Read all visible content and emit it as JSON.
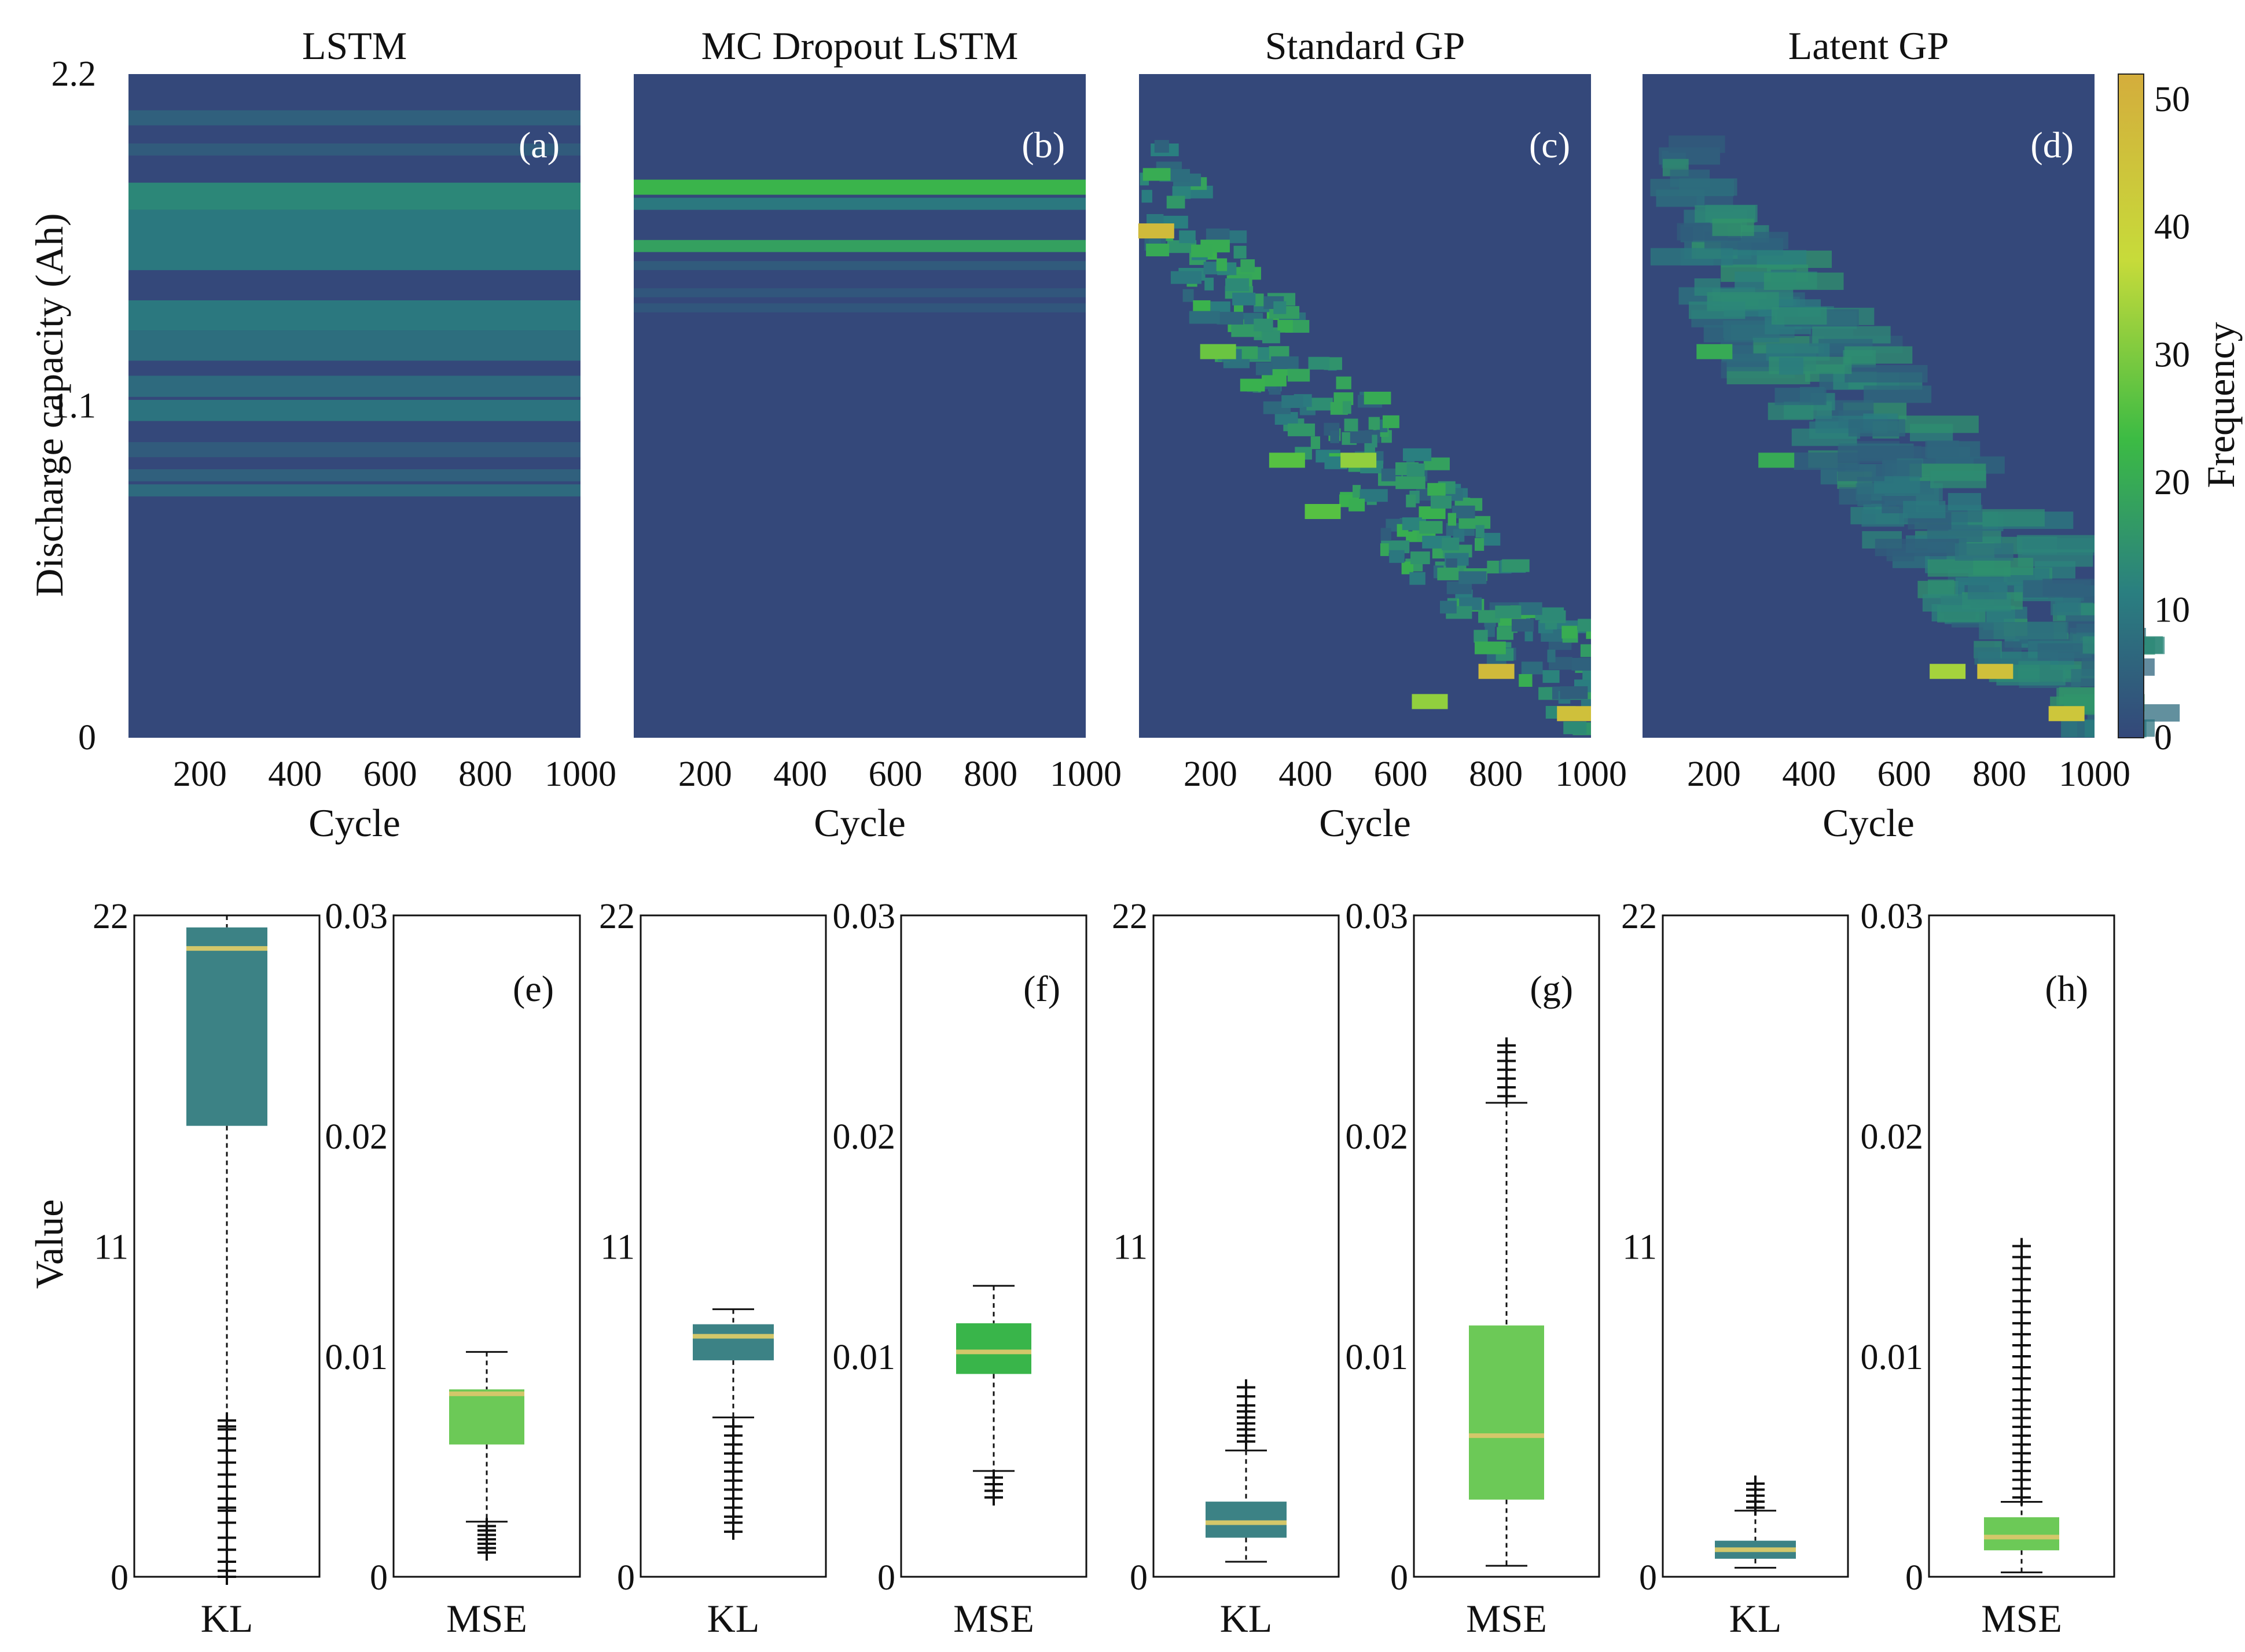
{
  "colors": {
    "background": "#34487a",
    "teal": "#2f7b80",
    "box_teal": "#3c8285",
    "green": "#39b54a",
    "box_green": "#6cc957",
    "yellow": "#d3c76a",
    "gold": "#e3b43d",
    "colorbar_stops": [
      "#34487a",
      "#2a7f80",
      "#3cbb44",
      "#c7db3a",
      "#d4ad3c"
    ]
  },
  "chart_data": [
    {
      "type": "heatmap",
      "panel": "(a)",
      "title": "LSTM",
      "xlabel": "Cycle",
      "ylabel": "Discharge capacity (Ah)",
      "xlim": [
        50,
        1000
      ],
      "ylim": [
        0,
        2.2
      ],
      "xticks": [
        "200",
        "400",
        "600",
        "800",
        "1000"
      ],
      "yticks": [
        "0",
        "1.1",
        "2.2"
      ],
      "bands": [
        {
          "y0": 2.03,
          "y1": 2.08,
          "freq": 5
        },
        {
          "y0": 1.93,
          "y1": 1.97,
          "freq": 4
        },
        {
          "y0": 1.75,
          "y1": 1.84,
          "freq": 13
        },
        {
          "y0": 1.55,
          "y1": 1.75,
          "freq": 10
        },
        {
          "y0": 1.35,
          "y1": 1.45,
          "freq": 10
        },
        {
          "y0": 1.25,
          "y1": 1.35,
          "freq": 8
        },
        {
          "y0": 1.13,
          "y1": 1.2,
          "freq": 7
        },
        {
          "y0": 1.05,
          "y1": 1.12,
          "freq": 9
        },
        {
          "y0": 0.93,
          "y1": 0.98,
          "freq": 4
        },
        {
          "y0": 0.85,
          "y1": 0.89,
          "freq": 5
        },
        {
          "y0": 0.8,
          "y1": 0.84,
          "freq": 7
        }
      ],
      "colorbar": {
        "label": "Frequency",
        "ticks": [
          "0",
          "10",
          "20",
          "30",
          "40",
          "50"
        ],
        "range": [
          0,
          52
        ]
      }
    },
    {
      "type": "heatmap",
      "panel": "(b)",
      "title": "MC Dropout LSTM",
      "xlabel": "Cycle",
      "xlim": [
        50,
        1000
      ],
      "ylim": [
        0,
        2.2
      ],
      "xticks": [
        "200",
        "400",
        "600",
        "800",
        "1000"
      ],
      "bands": [
        {
          "y0": 1.8,
          "y1": 1.85,
          "freq": 22
        },
        {
          "y0": 1.75,
          "y1": 1.79,
          "freq": 10
        },
        {
          "y0": 1.61,
          "y1": 1.65,
          "freq": 18
        },
        {
          "y0": 1.55,
          "y1": 1.58,
          "freq": 4
        },
        {
          "y0": 1.46,
          "y1": 1.49,
          "freq": 3
        },
        {
          "y0": 1.41,
          "y1": 1.44,
          "freq": 3
        }
      ]
    },
    {
      "type": "heatmap",
      "panel": "(c)",
      "title": "Standard GP",
      "xlabel": "Cycle",
      "xlim": [
        50,
        1000
      ],
      "ylim": [
        0,
        2.2
      ],
      "xticks": [
        "200",
        "400",
        "600",
        "800",
        "1000"
      ],
      "trend": "scattered cells following a decreasing capacity diagonal from about 1.85 Ah at cycle 50 to about 0.1 Ah at cycle 1000",
      "hotspots": [
        {
          "cycle": 85,
          "capacity": 1.68,
          "freq": 48
        },
        {
          "cycle": 215,
          "capacity": 1.28,
          "freq": 28
        },
        {
          "cycle": 360,
          "capacity": 0.92,
          "freq": 26
        },
        {
          "cycle": 435,
          "capacity": 0.75,
          "freq": 26
        },
        {
          "cycle": 510,
          "capacity": 0.92,
          "freq": 32
        },
        {
          "cycle": 660,
          "capacity": 0.12,
          "freq": 32
        },
        {
          "cycle": 800,
          "capacity": 0.22,
          "freq": 48
        },
        {
          "cycle": 965,
          "capacity": 0.08,
          "freq": 46
        }
      ]
    },
    {
      "type": "heatmap",
      "panel": "(d)",
      "title": "Latent GP",
      "xlabel": "Cycle",
      "xlim": [
        50,
        1000
      ],
      "ylim": [
        0,
        2.2
      ],
      "xticks": [
        "200",
        "400",
        "600",
        "800",
        "1000"
      ],
      "trend": "smoother, wider bands following a decreasing capacity diagonal from about 1.85 Ah at cycle 50 to about 0.1 Ah at cycle 1000",
      "hotspots": [
        {
          "cycle": 200,
          "capacity": 1.28,
          "freq": 20
        },
        {
          "cycle": 330,
          "capacity": 0.92,
          "freq": 20
        },
        {
          "cycle": 690,
          "capacity": 0.22,
          "freq": 34
        },
        {
          "cycle": 790,
          "capacity": 0.22,
          "freq": 46
        },
        {
          "cycle": 940,
          "capacity": 0.08,
          "freq": 44
        }
      ]
    },
    {
      "type": "box",
      "panel": "(e)",
      "ylabel": "Value",
      "plots": [
        {
          "label": "KL",
          "ylim": [
            0,
            22
          ],
          "yticks": [
            "0",
            "11",
            "22"
          ],
          "whisker_low": 0.0,
          "q1": 15.0,
          "median": 20.9,
          "q3": 21.6,
          "whisker_high": 22.0,
          "color": "box_teal",
          "outliers": [
            0.0,
            0.2,
            0.5,
            0.9,
            1.3,
            1.8,
            2.2,
            2.3,
            2.6,
            3.0,
            3.4,
            3.8,
            4.2,
            4.6,
            4.9,
            5.0,
            5.2
          ]
        },
        {
          "label": "MSE",
          "ylim": [
            0,
            0.03
          ],
          "yticks": [
            "0",
            "0.01",
            "0.02",
            "0.03"
          ],
          "whisker_low": 0.0025,
          "q1": 0.006,
          "median": 0.0083,
          "q3": 0.0085,
          "whisker_high": 0.0102,
          "color": "box_green",
          "outliers": [
            0.0011,
            0.0013,
            0.0015,
            0.0017,
            0.0019,
            0.0021,
            0.0023
          ]
        }
      ]
    },
    {
      "type": "box",
      "panel": "(f)",
      "plots": [
        {
          "label": "KL",
          "ylim": [
            0,
            22
          ],
          "yticks": [
            "0",
            "11",
            "22"
          ],
          "whisker_low": 5.3,
          "q1": 7.2,
          "median": 8.0,
          "q3": 8.4,
          "whisker_high": 8.9,
          "color": "box_teal",
          "outliers": [
            1.5,
            1.8,
            2.0,
            2.3,
            2.6,
            2.9,
            3.2,
            3.5,
            3.8,
            4.1,
            4.4,
            4.7,
            5.0
          ]
        },
        {
          "label": "MSE",
          "ylim": [
            0,
            0.03
          ],
          "yticks": [
            "0",
            "0.01",
            "0.02",
            "0.03"
          ],
          "whisker_low": 0.0048,
          "q1": 0.0092,
          "median": 0.0102,
          "q3": 0.0115,
          "whisker_high": 0.0132,
          "color": "green",
          "outliers": [
            0.0036,
            0.0039,
            0.0042,
            0.0045
          ]
        }
      ]
    },
    {
      "type": "box",
      "panel": "(g)",
      "plots": [
        {
          "label": "KL",
          "ylim": [
            0,
            22
          ],
          "yticks": [
            "0",
            "11",
            "22"
          ],
          "whisker_low": 0.5,
          "q1": 1.3,
          "median": 1.8,
          "q3": 2.5,
          "whisker_high": 4.2,
          "color": "box_teal",
          "outliers": [
            4.5,
            4.7,
            4.9,
            5.1,
            5.3,
            5.5,
            5.7,
            6.0,
            6.3
          ]
        },
        {
          "label": "MSE",
          "ylim": [
            0,
            0.03
          ],
          "yticks": [
            "0",
            "0.01",
            "0.02",
            "0.03"
          ],
          "whisker_low": 0.0005,
          "q1": 0.0035,
          "median": 0.0064,
          "q3": 0.0114,
          "whisker_high": 0.0215,
          "color": "box_green",
          "outliers": [
            0.0218,
            0.0222,
            0.0226,
            0.023,
            0.0234,
            0.0238,
            0.0241
          ]
        }
      ]
    },
    {
      "type": "box",
      "panel": "(h)",
      "plots": [
        {
          "label": "KL",
          "ylim": [
            0,
            22
          ],
          "yticks": [
            "0",
            "11",
            "22"
          ],
          "whisker_low": 0.3,
          "q1": 0.6,
          "median": 0.9,
          "q3": 1.2,
          "whisker_high": 2.2,
          "color": "box_teal",
          "outliers": [
            2.3,
            2.5,
            2.7,
            2.9,
            3.1
          ]
        },
        {
          "label": "MSE",
          "ylim": [
            0,
            0.03
          ],
          "yticks": [
            "0",
            "0.01",
            "0.02",
            "0.03"
          ],
          "whisker_low": 0.0002,
          "q1": 0.0012,
          "median": 0.0018,
          "q3": 0.0027,
          "whisker_high": 0.0034,
          "color": "box_green",
          "outliers": [
            0.0036,
            0.004,
            0.0044,
            0.0048,
            0.0052,
            0.0056,
            0.006,
            0.0064,
            0.0068,
            0.0072,
            0.0076,
            0.008,
            0.0085,
            0.009,
            0.0095,
            0.01,
            0.0105,
            0.011,
            0.0115,
            0.012,
            0.0125,
            0.013,
            0.0135,
            0.014,
            0.0145,
            0.015
          ]
        }
      ]
    }
  ]
}
